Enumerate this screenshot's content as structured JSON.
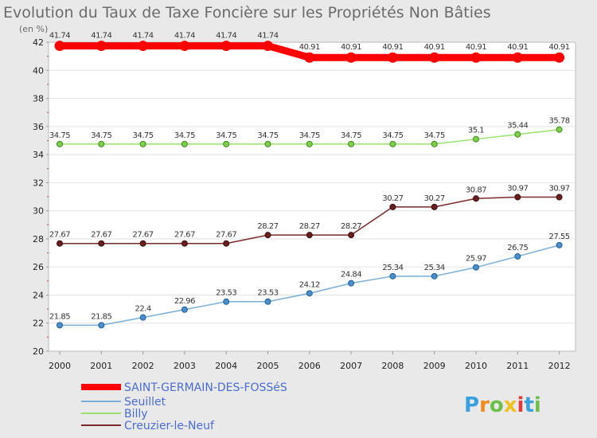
{
  "chart_data": {
    "type": "line",
    "title": "Evolution du Taux de Taxe Foncière sur les Propriétés Non Bâties",
    "ylabel": "(en %)",
    "xlabel": "",
    "ylim": [
      20,
      42
    ],
    "yticks": [
      20,
      22,
      24,
      26,
      28,
      30,
      32,
      34,
      36,
      38,
      40,
      42
    ],
    "categories": [
      "2000",
      "2001",
      "2002",
      "2003",
      "2004",
      "2005",
      "2006",
      "2007",
      "2008",
      "2009",
      "2010",
      "2011",
      "2012"
    ],
    "series": [
      {
        "name": "SAINT-GERMAIN-DES-FOSSéS",
        "color": "#ff0000",
        "values": [
          41.74,
          41.74,
          41.74,
          41.74,
          41.74,
          41.74,
          40.91,
          40.91,
          40.91,
          40.91,
          40.91,
          40.91,
          40.91
        ],
        "labels": [
          "41.74",
          "41.74",
          "41.74",
          "41.74",
          "41.74",
          "41.74",
          "40.91",
          "40.91",
          "40.91",
          "40.91",
          "40.91",
          "40.91",
          "40.91"
        ]
      },
      {
        "name": "Seuillet",
        "color": "#7aaed6",
        "values": [
          21.85,
          21.85,
          22.4,
          22.96,
          23.53,
          23.53,
          24.12,
          24.84,
          25.34,
          25.34,
          25.97,
          26.75,
          27.55
        ],
        "labels": [
          "21.85",
          "21.85",
          "22.4",
          "22.96",
          "23.53",
          "23.53",
          "24.12",
          "24.84",
          "25.34",
          "25.34",
          "25.97",
          "26.75",
          "27.55"
        ]
      },
      {
        "name": "Billy",
        "color": "#9be06e",
        "values": [
          34.75,
          34.75,
          34.75,
          34.75,
          34.75,
          34.75,
          34.75,
          34.75,
          34.75,
          34.75,
          35.1,
          35.44,
          35.78
        ],
        "labels": [
          "34.75",
          "34.75",
          "34.75",
          "34.75",
          "34.75",
          "34.75",
          "34.75",
          "34.75",
          "34.75",
          "34.75",
          "35.1",
          "35.44",
          "35.78"
        ]
      },
      {
        "name": "Creuzier-le-Neuf",
        "color": "#7a2a2a",
        "values": [
          27.67,
          27.67,
          27.67,
          27.67,
          27.67,
          28.27,
          28.27,
          28.27,
          30.27,
          30.27,
          30.87,
          30.97,
          30.97
        ],
        "labels": [
          "27.67",
          "27.67",
          "27.67",
          "27.67",
          "27.67",
          "28.27",
          "28.27",
          "28.27",
          "30.27",
          "30.27",
          "30.87",
          "30.97",
          "30.97"
        ]
      }
    ],
    "legend_position": "bottom-left"
  },
  "branding": {
    "logo_text": "Proxiti"
  }
}
